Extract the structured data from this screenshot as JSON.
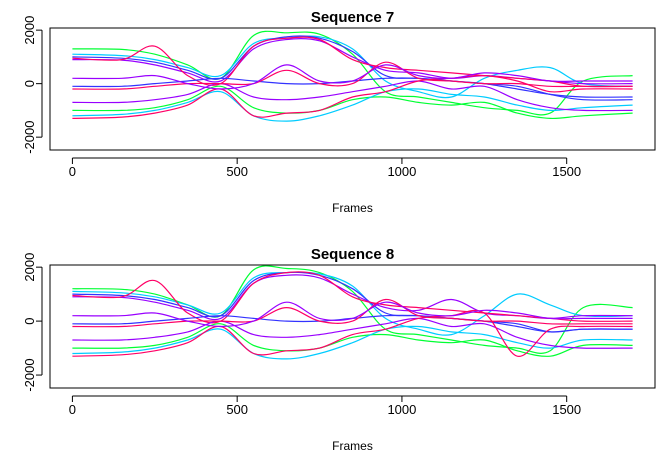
{
  "chart_data": [
    {
      "type": "line",
      "title": "Sequence 7",
      "xlabel": "Frames",
      "ylabel": "",
      "xlim": [
        0,
        1700
      ],
      "ylim": [
        -2000,
        2000
      ],
      "xticks": [
        0,
        500,
        1000,
        1500
      ],
      "yticks": [
        -2000,
        0,
        2000
      ],
      "x": [
        0,
        150,
        250,
        350,
        450,
        550,
        650,
        750,
        850,
        950,
        1050,
        1150,
        1250,
        1350,
        1450,
        1550,
        1700
      ],
      "series": [
        {
          "color": "#00ff33",
          "values": [
            1300,
            1280,
            1100,
            700,
            200,
            1800,
            1900,
            1850,
            1100,
            -300,
            -500,
            -700,
            -900,
            -1000,
            -1100,
            100,
            300
          ]
        },
        {
          "color": "#00ccff",
          "values": [
            1100,
            1050,
            900,
            600,
            300,
            1500,
            1700,
            1750,
            1300,
            100,
            -300,
            -500,
            200,
            500,
            600,
            0,
            -100
          ]
        },
        {
          "color": "#3333ff",
          "values": [
            1000,
            950,
            800,
            500,
            200,
            1400,
            1750,
            1700,
            1200,
            300,
            200,
            100,
            0,
            -100,
            -400,
            -600,
            -600
          ]
        },
        {
          "color": "#9900ff",
          "values": [
            900,
            880,
            700,
            400,
            100,
            1300,
            1650,
            1600,
            1000,
            500,
            400,
            200,
            300,
            200,
            100,
            0,
            0
          ]
        },
        {
          "color": "#ff0066",
          "values": [
            950,
            900,
            1400,
            300,
            0,
            1400,
            1700,
            1650,
            900,
            600,
            500,
            400,
            300,
            200,
            100,
            -100,
            -100
          ]
        },
        {
          "color": "#00ff33",
          "values": [
            -1000,
            -1000,
            -900,
            -600,
            -100,
            -900,
            -1100,
            -1000,
            -600,
            -500,
            -700,
            -800,
            -700,
            -1100,
            -1300,
            -1200,
            -1100
          ]
        },
        {
          "color": "#00ccff",
          "values": [
            -1200,
            -1150,
            -1000,
            -700,
            -300,
            -1200,
            -1400,
            -1200,
            -800,
            -300,
            -200,
            -400,
            -500,
            -800,
            -1000,
            -900,
            -800
          ]
        },
        {
          "color": "#3333ff",
          "values": [
            -100,
            -100,
            0,
            100,
            200,
            100,
            0,
            0,
            100,
            200,
            200,
            100,
            0,
            -200,
            -400,
            -500,
            -500
          ]
        },
        {
          "color": "#9900ff",
          "values": [
            -700,
            -700,
            -600,
            -400,
            0,
            -500,
            -600,
            -500,
            -300,
            -100,
            100,
            -200,
            -100,
            -600,
            -900,
            -1000,
            -1000
          ]
        },
        {
          "color": "#ff0066",
          "values": [
            -1300,
            -1250,
            -1100,
            -800,
            -200,
            -1200,
            -1100,
            -1000,
            -500,
            -300,
            100,
            200,
            300,
            100,
            -300,
            -200,
            -200
          ]
        },
        {
          "color": "#ff0066",
          "values": [
            -200,
            -200,
            -100,
            0,
            0,
            0,
            500,
            0,
            0,
            800,
            200,
            100,
            0,
            0,
            -100,
            -100,
            -100
          ]
        },
        {
          "color": "#9900ff",
          "values": [
            200,
            200,
            300,
            0,
            -200,
            0,
            700,
            100,
            100,
            700,
            300,
            200,
            400,
            300,
            100,
            100,
            100
          ]
        }
      ]
    },
    {
      "type": "line",
      "title": "Sequence 8",
      "xlabel": "Frames",
      "ylabel": "",
      "xlim": [
        0,
        1700
      ],
      "ylim": [
        -2000,
        2000
      ],
      "xticks": [
        0,
        500,
        1000,
        1500
      ],
      "yticks": [
        -2000,
        0,
        2000
      ],
      "x": [
        0,
        150,
        250,
        350,
        450,
        550,
        650,
        750,
        850,
        950,
        1050,
        1150,
        1250,
        1350,
        1450,
        1550,
        1700
      ],
      "series": [
        {
          "color": "#00ff33",
          "values": [
            1200,
            1180,
            1000,
            600,
            200,
            1900,
            1950,
            1800,
            1100,
            -300,
            -500,
            -700,
            -900,
            -1000,
            -1100,
            500,
            500
          ]
        },
        {
          "color": "#00ccff",
          "values": [
            1100,
            1050,
            900,
            600,
            300,
            1600,
            1800,
            1750,
            1300,
            100,
            -300,
            -500,
            200,
            1000,
            600,
            200,
            200
          ]
        },
        {
          "color": "#3333ff",
          "values": [
            1000,
            950,
            800,
            500,
            200,
            1500,
            1800,
            1700,
            1200,
            300,
            200,
            100,
            0,
            -100,
            -400,
            -300,
            -300
          ]
        },
        {
          "color": "#9900ff",
          "values": [
            900,
            880,
            700,
            400,
            100,
            1400,
            1700,
            1600,
            1000,
            500,
            400,
            800,
            300,
            200,
            100,
            200,
            200
          ]
        },
        {
          "color": "#ff0066",
          "values": [
            950,
            900,
            1500,
            300,
            0,
            1400,
            1800,
            1700,
            900,
            600,
            500,
            400,
            300,
            200,
            100,
            0,
            0
          ]
        },
        {
          "color": "#00ff33",
          "values": [
            -1000,
            -1000,
            -900,
            -600,
            -100,
            -900,
            -1100,
            -1000,
            -600,
            -500,
            -700,
            -800,
            -700,
            -1100,
            -1300,
            -900,
            -900
          ]
        },
        {
          "color": "#00ccff",
          "values": [
            -1200,
            -1150,
            -1000,
            -700,
            -300,
            -1200,
            -1400,
            -1200,
            -800,
            -300,
            -200,
            -400,
            -500,
            -800,
            -1000,
            -700,
            -700
          ]
        },
        {
          "color": "#3333ff",
          "values": [
            -100,
            -100,
            0,
            100,
            200,
            100,
            0,
            0,
            100,
            200,
            200,
            100,
            0,
            -200,
            -400,
            -300,
            -300
          ]
        },
        {
          "color": "#9900ff",
          "values": [
            -700,
            -700,
            -600,
            -400,
            0,
            -500,
            -600,
            -500,
            -300,
            -100,
            100,
            -200,
            -100,
            -600,
            -900,
            -1000,
            -1000
          ]
        },
        {
          "color": "#ff0066",
          "values": [
            -1300,
            -1250,
            -1100,
            -800,
            -200,
            -1200,
            -1100,
            -1000,
            -500,
            -300,
            100,
            200,
            300,
            -1300,
            -300,
            -200,
            -200
          ]
        },
        {
          "color": "#ff0066",
          "values": [
            -200,
            -200,
            -100,
            0,
            0,
            0,
            500,
            0,
            0,
            800,
            200,
            100,
            0,
            0,
            -100,
            -100,
            -100
          ]
        },
        {
          "color": "#9900ff",
          "values": [
            200,
            200,
            300,
            0,
            -200,
            0,
            700,
            100,
            100,
            700,
            300,
            200,
            400,
            300,
            100,
            100,
            100
          ]
        }
      ]
    }
  ]
}
